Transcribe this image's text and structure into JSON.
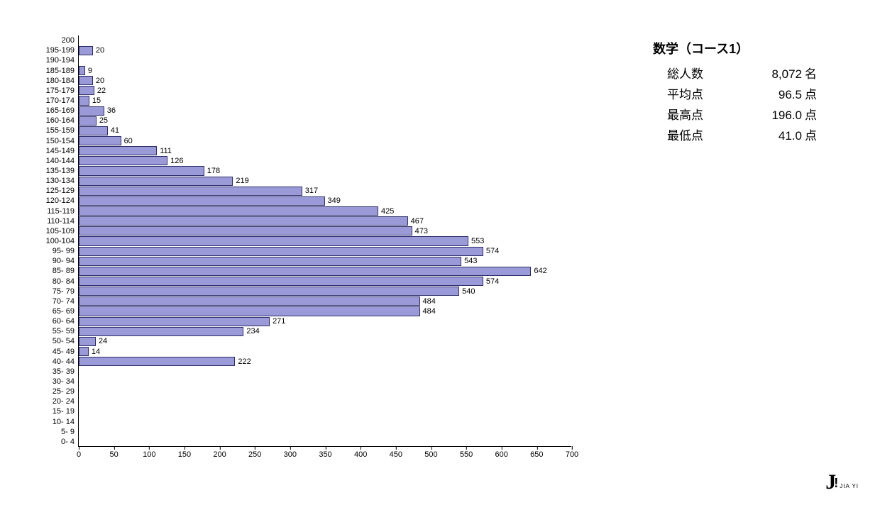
{
  "chart": {
    "type": "horizontal-bar-histogram",
    "bar_fill_color": "#9a9ad8",
    "bar_border_color": "#2d2d6a",
    "background_color": "#ffffff",
    "label_fontsize": 11,
    "xlim": [
      0,
      700
    ],
    "x_ticks": [
      0,
      50,
      100,
      150,
      200,
      250,
      300,
      350,
      400,
      450,
      500,
      550,
      600,
      650,
      700
    ],
    "x_tick_labels": [
      "0",
      "50",
      "100",
      "150",
      "200",
      "250",
      "300",
      "350",
      "400",
      "450",
      "500",
      "550",
      "600",
      "650",
      "700"
    ],
    "bins": [
      {
        "label": "200",
        "value": null
      },
      {
        "label": "195-199",
        "value": 20
      },
      {
        "label": "190-194",
        "value": null
      },
      {
        "label": "185-189",
        "value": 9
      },
      {
        "label": "180-184",
        "value": 20
      },
      {
        "label": "175-179",
        "value": 22
      },
      {
        "label": "170-174",
        "value": 15
      },
      {
        "label": "165-169",
        "value": 36
      },
      {
        "label": "160-164",
        "value": 25
      },
      {
        "label": "155-159",
        "value": 41
      },
      {
        "label": "150-154",
        "value": 60
      },
      {
        "label": "145-149",
        "value": 111
      },
      {
        "label": "140-144",
        "value": 126
      },
      {
        "label": "135-139",
        "value": 178
      },
      {
        "label": "130-134",
        "value": 219
      },
      {
        "label": "125-129",
        "value": 317
      },
      {
        "label": "120-124",
        "value": 349
      },
      {
        "label": "115-119",
        "value": 425
      },
      {
        "label": "110-114",
        "value": 467
      },
      {
        "label": "105-109",
        "value": 473
      },
      {
        "label": "100-104",
        "value": 553
      },
      {
        "label": "95- 99",
        "value": 574
      },
      {
        "label": "90- 94",
        "value": 543
      },
      {
        "label": "85- 89",
        "value": 642
      },
      {
        "label": "80- 84",
        "value": 574
      },
      {
        "label": "75- 79",
        "value": 540
      },
      {
        "label": "70- 74",
        "value": 484
      },
      {
        "label": "65- 69",
        "value": 484
      },
      {
        "label": "60- 64",
        "value": 271
      },
      {
        "label": "55- 59",
        "value": 234
      },
      {
        "label": "50- 54",
        "value": 24
      },
      {
        "label": "45- 49",
        "value": 14
      },
      {
        "label": "40- 44",
        "value": 222
      },
      {
        "label": "35- 39",
        "value": null
      },
      {
        "label": "30- 34",
        "value": null
      },
      {
        "label": "25- 29",
        "value": null
      },
      {
        "label": "20- 24",
        "value": null
      },
      {
        "label": "15- 19",
        "value": null
      },
      {
        "label": "10- 14",
        "value": null
      },
      {
        "label": "5-  9",
        "value": null
      },
      {
        "label": "0-  4",
        "value": null
      }
    ]
  },
  "stats": {
    "title": "数学（コース1）",
    "rows": [
      {
        "label": "総人数",
        "value": "8,072",
        "unit": "名"
      },
      {
        "label": "平均点",
        "value": "96.5",
        "unit": "点"
      },
      {
        "label": "最高点",
        "value": "196.0",
        "unit": "点"
      },
      {
        "label": "最低点",
        "value": "41.0",
        "unit": "点"
      }
    ]
  },
  "logo": {
    "text": "JIA YI"
  }
}
